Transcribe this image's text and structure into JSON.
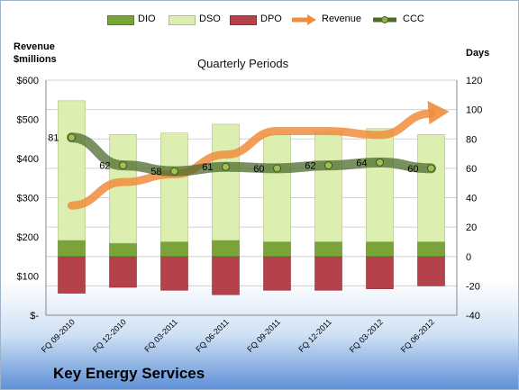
{
  "company": "Key Energy Services",
  "chart_data": {
    "type": "bar",
    "title": "Quarterly Periods",
    "y_left_title": [
      "Revenue",
      "$millions"
    ],
    "y_right_title": "Days",
    "categories": [
      "FQ 09-2010",
      "FQ 12-2010",
      "FQ 03-2011",
      "FQ 06-2011",
      "FQ 09-2011",
      "FQ 12-2011",
      "FQ 03-2012",
      "FQ 06-2012"
    ],
    "y_left": {
      "min": 0,
      "max": 600,
      "ticks": [
        "$-",
        "$100",
        "$200",
        "$300",
        "$400",
        "$500",
        "$600"
      ]
    },
    "y_right": {
      "min": -40,
      "max": 120,
      "ticks": [
        -40,
        -20,
        0,
        20,
        40,
        60,
        80,
        100,
        120
      ]
    },
    "series": [
      {
        "name": "DIO",
        "axis": "days",
        "color": "#7aa33a",
        "values": [
          11,
          9,
          10,
          11,
          10,
          10,
          10,
          10
        ]
      },
      {
        "name": "DSO",
        "axis": "days",
        "color": "#dcefb0",
        "values": [
          95,
          74,
          74,
          79,
          73,
          75,
          77,
          73
        ]
      },
      {
        "name": "DPO",
        "axis": "days",
        "color": "#b5424a",
        "values": [
          25,
          21,
          23,
          26,
          23,
          23,
          22,
          20
        ]
      },
      {
        "name": "Revenue",
        "axis": "revenue",
        "color": "#f08c3c",
        "values": [
          280,
          340,
          360,
          410,
          470,
          470,
          460,
          515
        ]
      },
      {
        "name": "CCC",
        "axis": "days",
        "color": "#4f6b2c",
        "values": [
          81,
          62,
          58,
          61,
          60,
          62,
          64,
          60
        ]
      }
    ],
    "ccc_labels": [
      "81",
      "62",
      "58",
      "61",
      "60",
      "62",
      "64",
      "60"
    ],
    "legend_position": "top"
  }
}
